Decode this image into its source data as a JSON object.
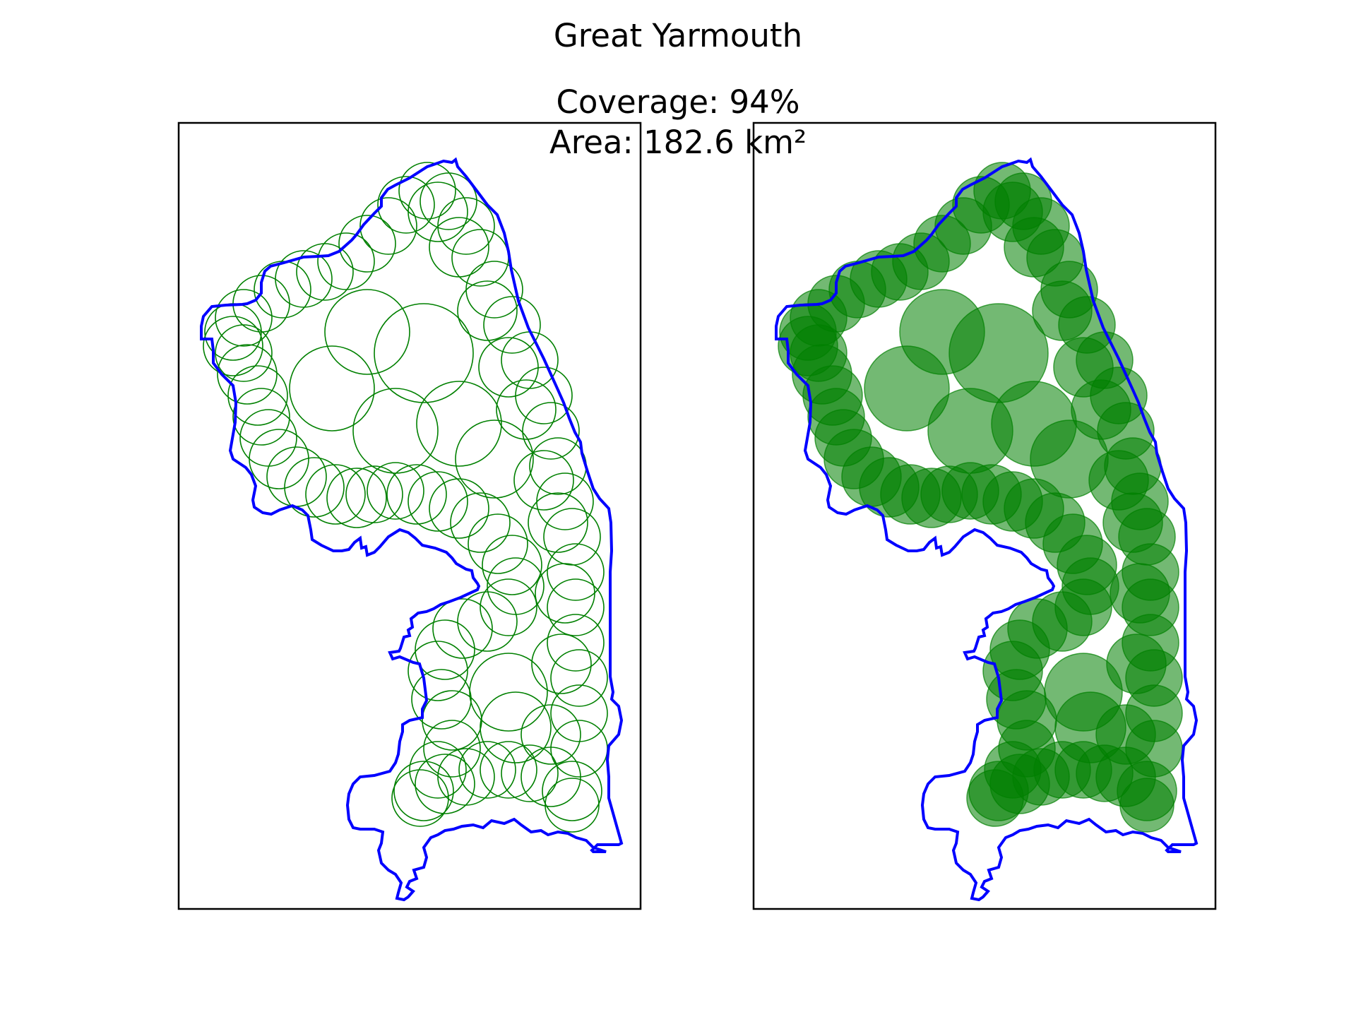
{
  "figure": {
    "title": "Great Yarmouth",
    "coverage_text": "Coverage: 94%",
    "area_text": "Area: 182.6 km²"
  },
  "style": {
    "boundary_color": "#0000ff",
    "circle_color": "#008000",
    "frame_color": "#000000"
  },
  "panels": [
    {
      "name": "left-panel",
      "circle_style": "outline"
    },
    {
      "name": "right-panel",
      "circle_style": "filled-translucent"
    }
  ]
}
